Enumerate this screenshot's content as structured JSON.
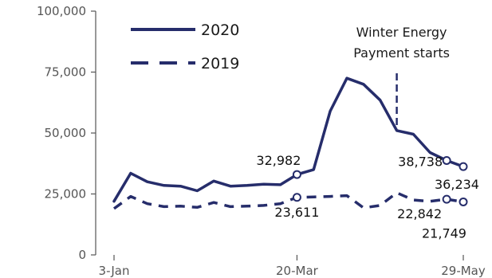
{
  "chart_data": {
    "type": "line",
    "title": "",
    "xlabel": "",
    "ylabel": "",
    "ylim": [
      0,
      100000
    ],
    "yticks": [
      0,
      25000,
      50000,
      75000,
      100000
    ],
    "ytick_labels": [
      "0",
      "25,000",
      "50,000",
      "75,000",
      "100,000"
    ],
    "xlim": [
      "2020-01-03",
      "2020-05-29"
    ],
    "xticks": [
      "2020-01-03",
      "2020-03-20",
      "2020-05-29"
    ],
    "xtick_labels": [
      "3-Jan",
      "20-Mar",
      "29-May"
    ],
    "grid": false,
    "legend_position": "top-left",
    "colors": {
      "series": "#262d6b",
      "marker_fill": "#ffffff",
      "text": "#1a1a1a"
    },
    "series": [
      {
        "name": "2020",
        "style": "solid",
        "x": [
          "2020-01-03",
          "2020-01-10",
          "2020-01-17",
          "2020-01-24",
          "2020-01-31",
          "2020-02-07",
          "2020-02-14",
          "2020-02-21",
          "2020-02-28",
          "2020-03-06",
          "2020-03-13",
          "2020-03-20",
          "2020-03-27",
          "2020-04-03",
          "2020-04-10",
          "2020-04-17",
          "2020-04-24",
          "2020-05-01",
          "2020-05-08",
          "2020-05-15",
          "2020-05-22",
          "2020-05-29"
        ],
        "values": [
          22000,
          33500,
          30000,
          28500,
          28200,
          26300,
          30300,
          28200,
          28500,
          29000,
          28800,
          32982,
          35000,
          59000,
          72500,
          70000,
          63500,
          51000,
          49500,
          42000,
          38738,
          36234
        ]
      },
      {
        "name": "2019",
        "style": "dashed",
        "x": [
          "2020-01-03",
          "2020-01-10",
          "2020-01-17",
          "2020-01-24",
          "2020-01-31",
          "2020-02-07",
          "2020-02-14",
          "2020-02-21",
          "2020-02-28",
          "2020-03-06",
          "2020-03-13",
          "2020-03-20",
          "2020-03-27",
          "2020-04-03",
          "2020-04-10",
          "2020-04-17",
          "2020-04-24",
          "2020-05-01",
          "2020-05-08",
          "2020-05-15",
          "2020-05-22",
          "2020-05-29"
        ],
        "values": [
          19000,
          24000,
          21000,
          19800,
          20000,
          19500,
          21500,
          19800,
          20000,
          20300,
          21000,
          23611,
          23800,
          24000,
          24300,
          19300,
          20300,
          25500,
          22500,
          22000,
          22842,
          21749
        ]
      }
    ],
    "markers": [
      {
        "series": "2020",
        "x": "2020-03-20",
        "value": 32982,
        "label": "32,982"
      },
      {
        "series": "2020",
        "x": "2020-05-22",
        "value": 38738,
        "label": "38,738"
      },
      {
        "series": "2020",
        "x": "2020-05-29",
        "value": 36234,
        "label": "36,234"
      },
      {
        "series": "2019",
        "x": "2020-03-20",
        "value": 23611,
        "label": "23,611"
      },
      {
        "series": "2019",
        "x": "2020-05-22",
        "value": 22842,
        "label": "22,842"
      },
      {
        "series": "2019",
        "x": "2020-05-29",
        "value": 21749,
        "label": "21,749"
      }
    ],
    "annotations": [
      {
        "x": "2020-05-01",
        "style": "dashed-vertical",
        "text_lines": [
          "Winter Energy",
          "Payment starts"
        ]
      }
    ]
  }
}
